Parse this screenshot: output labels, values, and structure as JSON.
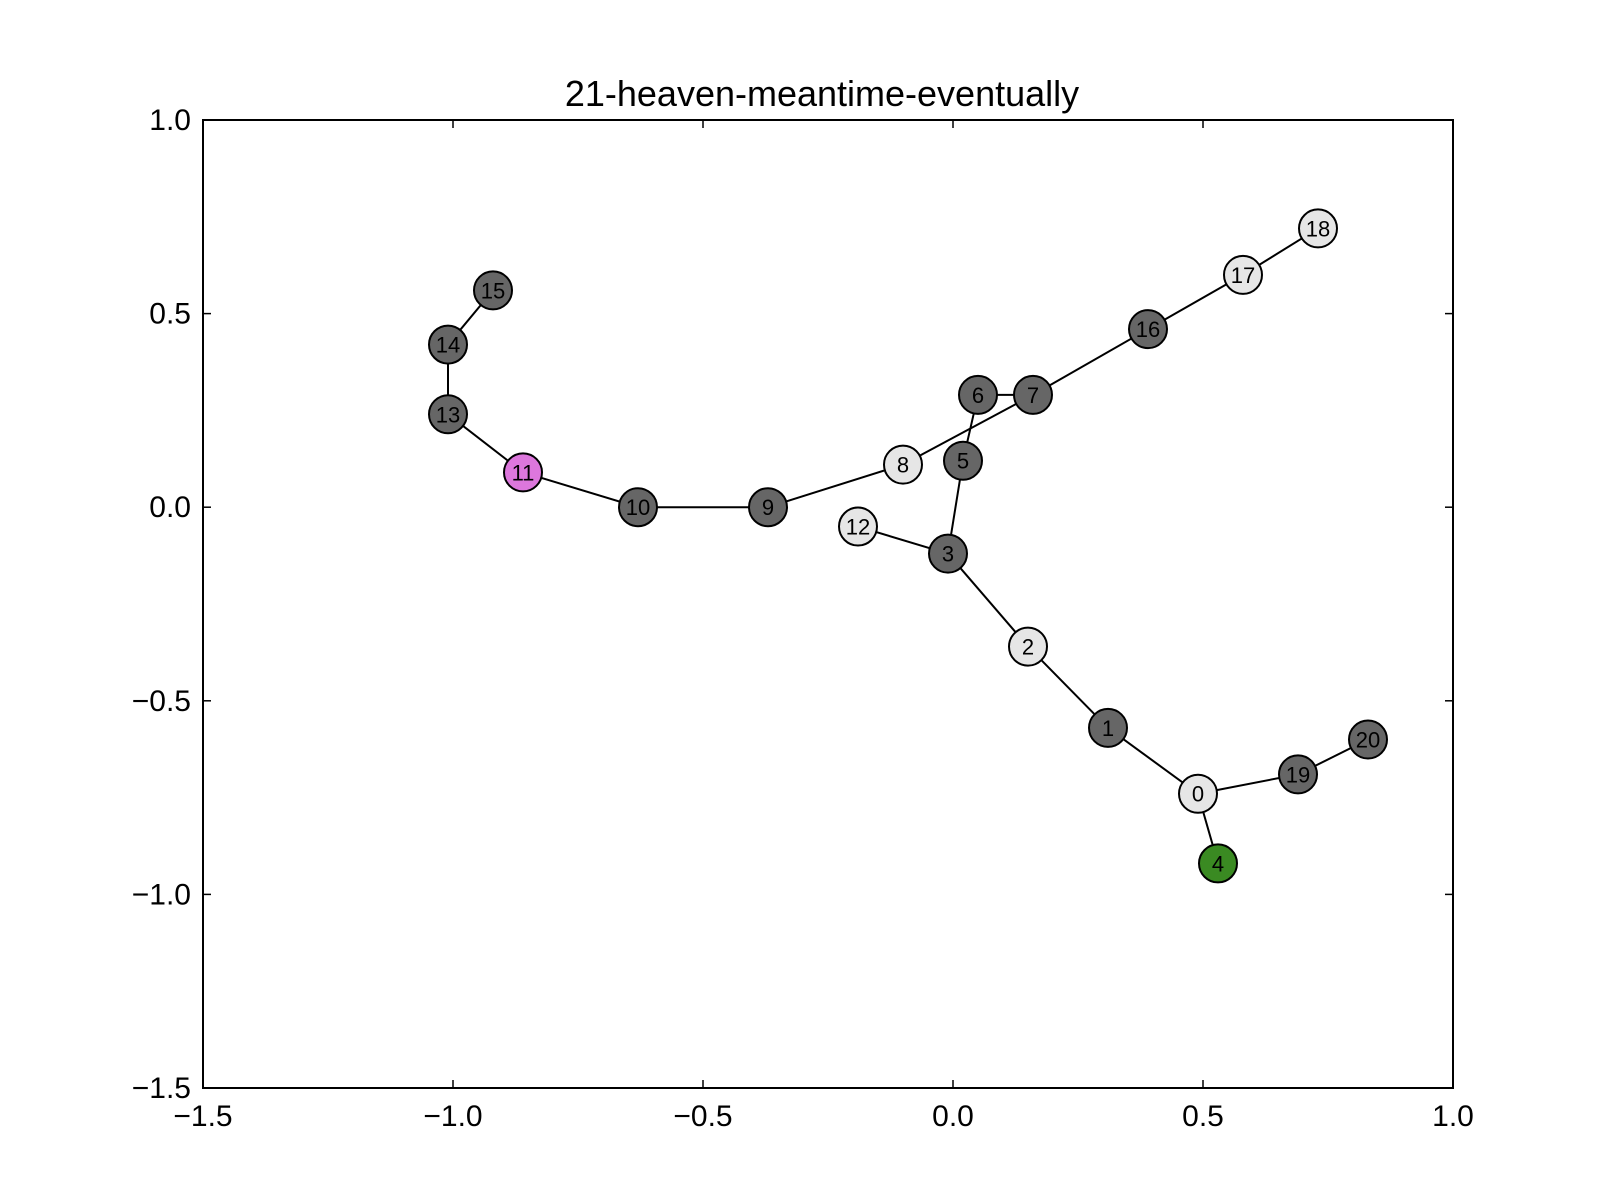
{
  "chart_data": {
    "type": "scatter",
    "title": "21-heaven-meantime-eventually",
    "xlabel": "",
    "ylabel": "",
    "xlim": [
      -1.5,
      1.0
    ],
    "ylim": [
      -1.5,
      1.0
    ],
    "xticks": [
      "−1.5",
      "−1.0",
      "−0.5",
      "0.0",
      "0.5",
      "1.0"
    ],
    "yticks": [
      "−1.5",
      "−1.0",
      "−0.5",
      "0.0",
      "0.5",
      "1.0"
    ],
    "xtick_values": [
      -1.5,
      -1.0,
      -0.5,
      0.0,
      0.5,
      1.0
    ],
    "ytick_values": [
      -1.5,
      -1.0,
      -0.5,
      0.0,
      0.5,
      1.0
    ],
    "grid": false,
    "colors": {
      "dark": "#666666",
      "light": "#e6e6e6",
      "pink": "#dd77dd",
      "green": "#3a8a22"
    },
    "nodes": [
      {
        "id": "0",
        "x": 0.49,
        "y": -0.74,
        "color": "light"
      },
      {
        "id": "1",
        "x": 0.31,
        "y": -0.57,
        "color": "dark"
      },
      {
        "id": "2",
        "x": 0.15,
        "y": -0.36,
        "color": "light"
      },
      {
        "id": "3",
        "x": -0.01,
        "y": -0.12,
        "color": "dark"
      },
      {
        "id": "4",
        "x": 0.53,
        "y": -0.92,
        "color": "green"
      },
      {
        "id": "5",
        "x": 0.02,
        "y": 0.12,
        "color": "dark"
      },
      {
        "id": "6",
        "x": 0.05,
        "y": 0.29,
        "color": "dark"
      },
      {
        "id": "7",
        "x": 0.16,
        "y": 0.29,
        "color": "dark"
      },
      {
        "id": "8",
        "x": -0.1,
        "y": 0.11,
        "color": "light"
      },
      {
        "id": "9",
        "x": -0.37,
        "y": 0.0,
        "color": "dark"
      },
      {
        "id": "10",
        "x": -0.63,
        "y": 0.0,
        "color": "dark"
      },
      {
        "id": "11",
        "x": -0.86,
        "y": 0.09,
        "color": "pink"
      },
      {
        "id": "12",
        "x": -0.19,
        "y": -0.05,
        "color": "light"
      },
      {
        "id": "13",
        "x": -1.01,
        "y": 0.24,
        "color": "dark"
      },
      {
        "id": "14",
        "x": -1.01,
        "y": 0.42,
        "color": "dark"
      },
      {
        "id": "15",
        "x": -0.92,
        "y": 0.56,
        "color": "dark"
      },
      {
        "id": "16",
        "x": 0.39,
        "y": 0.46,
        "color": "dark"
      },
      {
        "id": "17",
        "x": 0.58,
        "y": 0.6,
        "color": "light"
      },
      {
        "id": "18",
        "x": 0.73,
        "y": 0.72,
        "color": "light"
      },
      {
        "id": "19",
        "x": 0.69,
        "y": -0.69,
        "color": "dark"
      },
      {
        "id": "20",
        "x": 0.83,
        "y": -0.6,
        "color": "dark"
      }
    ],
    "edges": [
      [
        "0",
        "1"
      ],
      [
        "0",
        "4"
      ],
      [
        "0",
        "19"
      ],
      [
        "19",
        "20"
      ],
      [
        "1",
        "2"
      ],
      [
        "2",
        "3"
      ],
      [
        "3",
        "12"
      ],
      [
        "3",
        "5"
      ],
      [
        "5",
        "6"
      ],
      [
        "6",
        "7"
      ],
      [
        "7",
        "16"
      ],
      [
        "16",
        "17"
      ],
      [
        "17",
        "18"
      ],
      [
        "7",
        "8"
      ],
      [
        "8",
        "9"
      ],
      [
        "9",
        "10"
      ],
      [
        "10",
        "11"
      ],
      [
        "11",
        "13"
      ],
      [
        "13",
        "14"
      ],
      [
        "14",
        "15"
      ]
    ]
  }
}
